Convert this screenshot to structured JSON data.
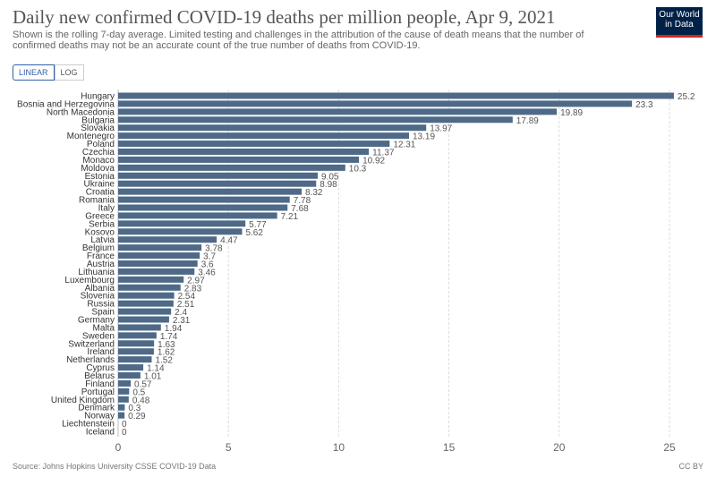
{
  "header": {
    "title": "Daily new confirmed COVID-19 deaths per million people, Apr 9, 2021",
    "subtitle": "Shown is the rolling 7-day average. Limited testing and challenges in the attribution of the cause of death means that the number of confirmed deaths may not be an accurate count of the true number of deaths from COVID-19.",
    "logo": "Our World in Data"
  },
  "toggles": {
    "linear": "LINEAR",
    "log": "LOG"
  },
  "footer": {
    "source": "Source: Johns Hopkins University CSSE COVID-19 Data",
    "license": "CC BY"
  },
  "colors": {
    "bar": "#4e6a87",
    "accent": "#3360a9"
  },
  "chart_data": {
    "type": "bar",
    "orientation": "horizontal",
    "xlim": [
      0,
      25.5
    ],
    "ticks": [
      0,
      5,
      10,
      15,
      20,
      25
    ],
    "grid": true,
    "categories": [
      "Hungary",
      "Bosnia and Herzegovina",
      "North Macedonia",
      "Bulgaria",
      "Slovakia",
      "Montenegro",
      "Poland",
      "Czechia",
      "Monaco",
      "Moldova",
      "Estonia",
      "Ukraine",
      "Croatia",
      "Romania",
      "Italy",
      "Greece",
      "Serbia",
      "Kosovo",
      "Latvia",
      "Belgium",
      "France",
      "Austria",
      "Lithuania",
      "Luxembourg",
      "Albania",
      "Slovenia",
      "Russia",
      "Spain",
      "Germany",
      "Malta",
      "Sweden",
      "Switzerland",
      "Ireland",
      "Netherlands",
      "Cyprus",
      "Belarus",
      "Finland",
      "Portugal",
      "United Kingdom",
      "Denmark",
      "Norway",
      "Liechtenstein",
      "Iceland"
    ],
    "values": [
      25.2,
      23.3,
      19.89,
      17.89,
      13.97,
      13.19,
      12.31,
      11.37,
      10.92,
      10.3,
      9.05,
      8.98,
      8.32,
      7.78,
      7.68,
      7.21,
      5.77,
      5.62,
      4.47,
      3.78,
      3.7,
      3.6,
      3.46,
      2.97,
      2.83,
      2.54,
      2.51,
      2.4,
      2.31,
      1.94,
      1.74,
      1.63,
      1.62,
      1.52,
      1.14,
      1.01,
      0.57,
      0.5,
      0.48,
      0.3,
      0.29,
      0,
      0
    ]
  }
}
